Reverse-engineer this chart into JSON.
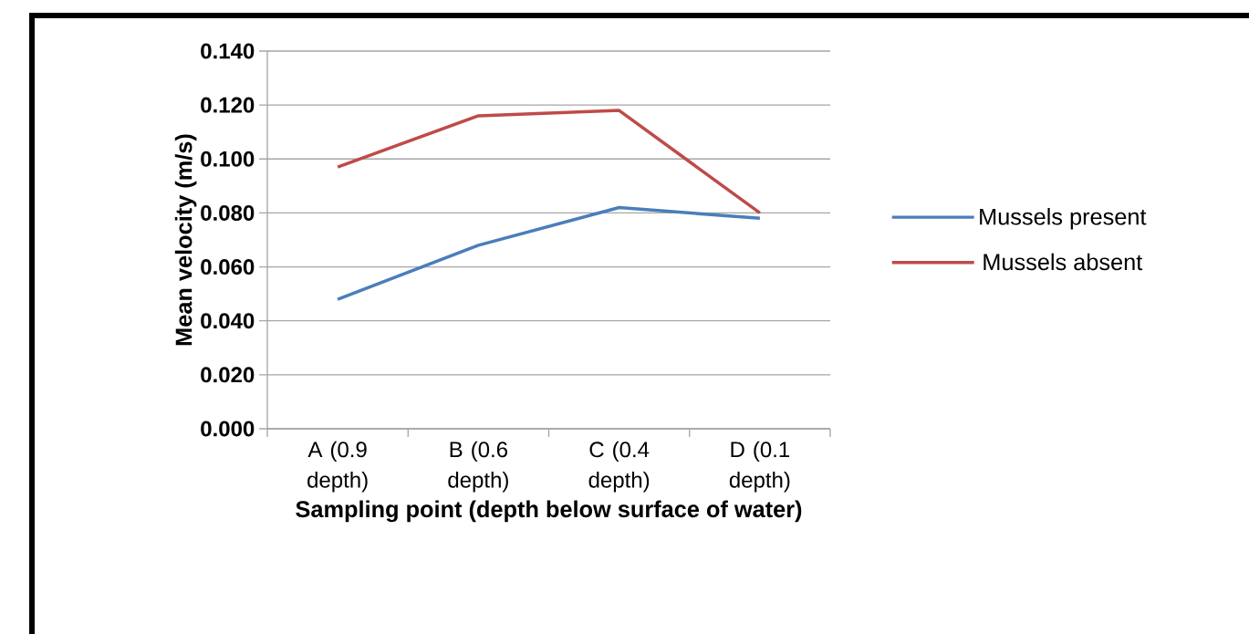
{
  "chart_data": {
    "type": "line",
    "xlabel": "Sampling point (depth below surface of water)",
    "ylabel": "Mean velocity (m/s)",
    "categories": [
      "A (0.9 depth)",
      "B (0.6 depth)",
      "C (0.4 depth)",
      "D (0.1 depth)"
    ],
    "series": [
      {
        "name": "Mussels present",
        "color": "#4a7ebb",
        "values": [
          0.048,
          0.068,
          0.082,
          0.078
        ]
      },
      {
        "name": "Mussels absent",
        "color": "#be4b48",
        "values": [
          0.097,
          0.116,
          0.118,
          0.08
        ]
      }
    ],
    "ylim": [
      0,
      0.14
    ],
    "yticks": [
      {
        "value": 0,
        "label": "0.000"
      },
      {
        "value": 0.02,
        "label": "0.020"
      },
      {
        "value": 0.04,
        "label": "0.040"
      },
      {
        "value": 0.06,
        "label": "0.060"
      },
      {
        "value": 0.08,
        "label": "0.080"
      },
      {
        "value": 0.1,
        "label": "0.100"
      },
      {
        "value": 0.12,
        "label": "0.120"
      },
      {
        "value": 0.14,
        "label": "0.140"
      }
    ],
    "grid": "y",
    "legend": "right",
    "marker": "none"
  }
}
